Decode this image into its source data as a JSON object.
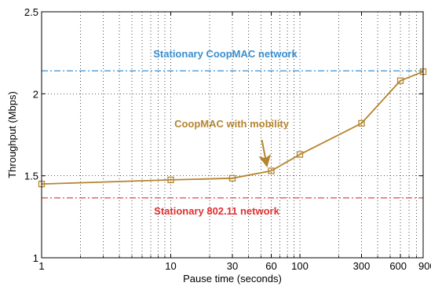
{
  "chart_data": {
    "type": "line",
    "xscale": "log",
    "xlabel": "Pause time (seconds)",
    "ylabel": "Throughput (Mbps)",
    "xlim": [
      1,
      900
    ],
    "ylim": [
      1,
      2.5
    ],
    "grid": true,
    "xticks": [
      1,
      10,
      30,
      60,
      100,
      300,
      600,
      900
    ],
    "xtick_labels": [
      "1",
      "10",
      "30",
      "60",
      "100",
      "300",
      "600",
      "900"
    ],
    "yticks": [
      1,
      1.5,
      2,
      2.5
    ],
    "ytick_labels": [
      "1",
      "1.5",
      "2",
      "2.5"
    ],
    "series": [
      {
        "x": [
          1,
          10,
          30,
          60,
          100,
          300,
          600,
          900
        ],
        "values": [
          1.45,
          1.475,
          1.485,
          1.53,
          1.63,
          1.82,
          2.08,
          2.135
        ],
        "color": "#b5852e",
        "marker": "square"
      }
    ],
    "reference_lines": [
      {
        "label": "Stationary CoopMAC network",
        "value": 2.14,
        "color": "#3a8fd0",
        "style": "dashdot"
      },
      {
        "label": "Stationary 802.11 network",
        "value": 1.365,
        "color": "#e03030",
        "style": "dashdot"
      }
    ],
    "annotations": [
      {
        "text": "CoopMAC with mobility",
        "color": "#b5852e",
        "arrow_to": {
          "x": 56,
          "y": 1.56
        }
      }
    ]
  }
}
